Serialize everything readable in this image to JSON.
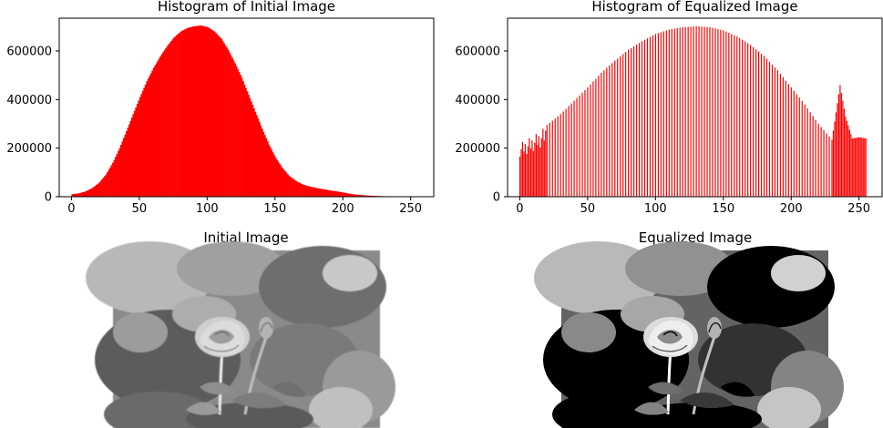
{
  "chart_data": [
    {
      "type": "bar",
      "title": "Histogram of Initial Image",
      "xlabel": "",
      "ylabel": "",
      "xlim": [
        -9,
        267
      ],
      "ylim": [
        0,
        735000
      ],
      "xticks": [
        0,
        50,
        100,
        150,
        200,
        250
      ],
      "yticks": [
        0,
        200000,
        400000,
        600000
      ],
      "color": "#ff0000",
      "bins": 256,
      "values_note": "",
      "anchors": [
        [
          0,
          10000
        ],
        [
          5,
          14000
        ],
        [
          10,
          22000
        ],
        [
          15,
          36000
        ],
        [
          20,
          58000
        ],
        [
          25,
          92000
        ],
        [
          30,
          140000
        ],
        [
          35,
          200000
        ],
        [
          40,
          270000
        ],
        [
          45,
          340000
        ],
        [
          50,
          410000
        ],
        [
          55,
          475000
        ],
        [
          60,
          530000
        ],
        [
          65,
          578000
        ],
        [
          70,
          620000
        ],
        [
          75,
          655000
        ],
        [
          80,
          680000
        ],
        [
          85,
          695000
        ],
        [
          90,
          702000
        ],
        [
          95,
          705000
        ],
        [
          100,
          698000
        ],
        [
          105,
          680000
        ],
        [
          110,
          650000
        ],
        [
          115,
          605000
        ],
        [
          120,
          550000
        ],
        [
          125,
          490000
        ],
        [
          130,
          420000
        ],
        [
          135,
          350000
        ],
        [
          140,
          280000
        ],
        [
          145,
          215000
        ],
        [
          150,
          160000
        ],
        [
          155,
          118000
        ],
        [
          160,
          85000
        ],
        [
          165,
          65000
        ],
        [
          170,
          50000
        ],
        [
          175,
          42000
        ],
        [
          180,
          36000
        ],
        [
          185,
          31000
        ],
        [
          190,
          26000
        ],
        [
          195,
          22000
        ],
        [
          200,
          17000
        ],
        [
          205,
          12000
        ],
        [
          210,
          8000
        ],
        [
          215,
          6000
        ],
        [
          220,
          4000
        ],
        [
          225,
          3000
        ],
        [
          230,
          2000
        ],
        [
          235,
          1200
        ],
        [
          240,
          400
        ],
        [
          245,
          0
        ],
        [
          255,
          0
        ]
      ]
    },
    {
      "type": "bar",
      "title": "Histogram of Equalized Image",
      "xlabel": "",
      "ylabel": "",
      "xlim": [
        -9,
        267
      ],
      "ylim": [
        0,
        735000
      ],
      "xticks": [
        0,
        50,
        100,
        150,
        200,
        250
      ],
      "yticks": [
        0,
        200000,
        400000,
        600000
      ],
      "color": "#ff0000",
      "envelope": [
        [
          0,
          220000
        ],
        [
          5,
          235000
        ],
        [
          10,
          250000
        ],
        [
          15,
          270000
        ],
        [
          20,
          295000
        ],
        [
          30,
          340000
        ],
        [
          40,
          395000
        ],
        [
          50,
          450000
        ],
        [
          60,
          510000
        ],
        [
          70,
          560000
        ],
        [
          80,
          605000
        ],
        [
          90,
          640000
        ],
        [
          100,
          670000
        ],
        [
          110,
          688000
        ],
        [
          120,
          698000
        ],
        [
          130,
          702000
        ],
        [
          140,
          698000
        ],
        [
          150,
          685000
        ],
        [
          160,
          660000
        ],
        [
          170,
          625000
        ],
        [
          180,
          580000
        ],
        [
          190,
          520000
        ],
        [
          200,
          450000
        ],
        [
          210,
          380000
        ],
        [
          220,
          300000
        ],
        [
          230,
          235000
        ],
        [
          236,
          460000
        ],
        [
          240,
          330000
        ],
        [
          245,
          240000
        ],
        [
          250,
          245000
        ],
        [
          255,
          240000
        ]
      ]
    }
  ],
  "images": [
    {
      "title": "Initial Image"
    },
    {
      "title": "Equalized Image"
    }
  ]
}
